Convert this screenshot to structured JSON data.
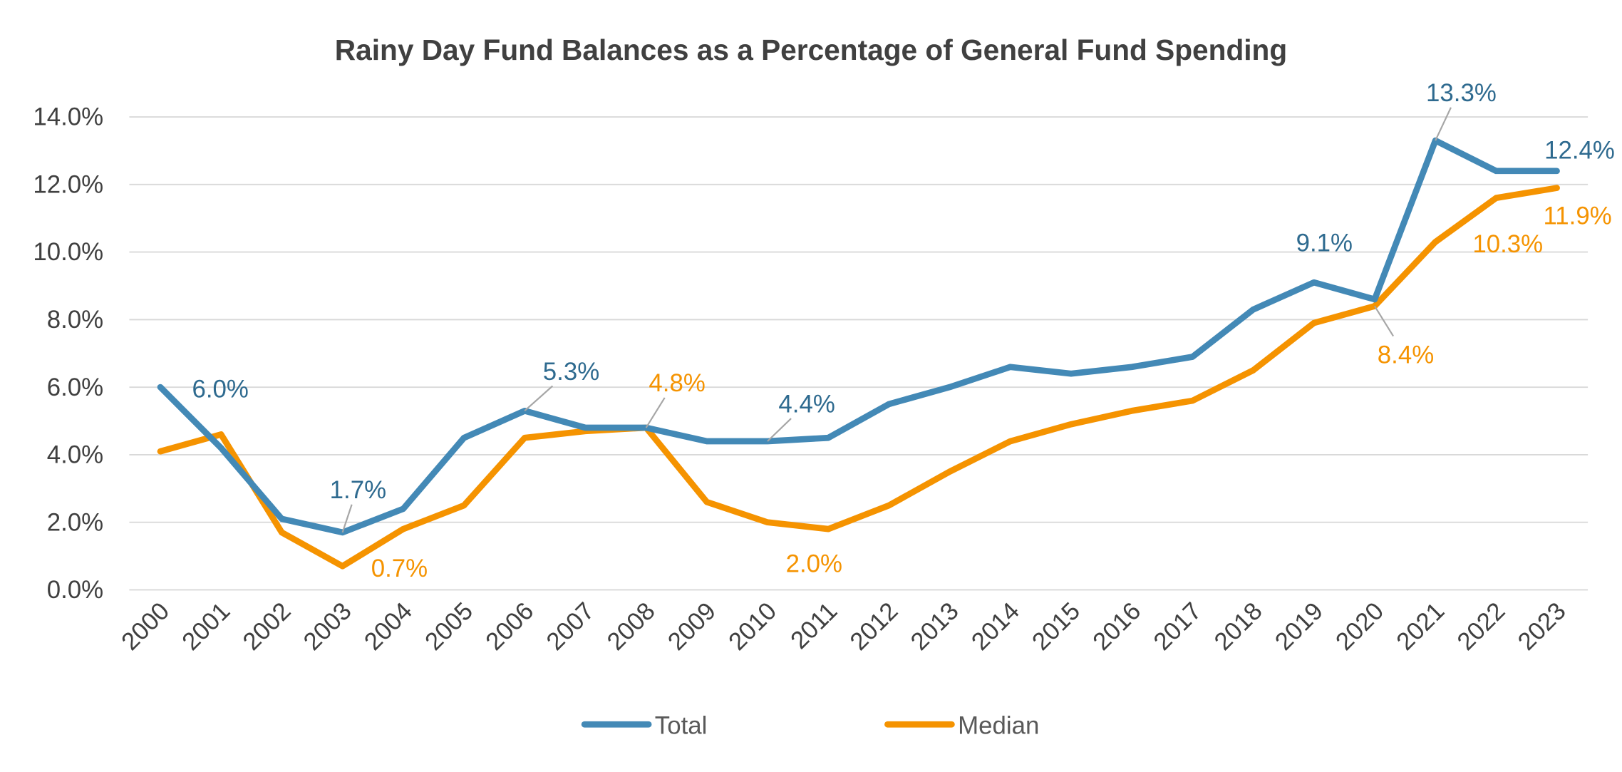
{
  "chart_data": {
    "type": "line",
    "title": "Rainy Day Fund Balances as a Percentage of General Fund Spending",
    "xlabel": "",
    "ylabel": "",
    "ylim": [
      0,
      14
    ],
    "y_ticks": [
      "0.0%",
      "2.0%",
      "4.0%",
      "6.0%",
      "8.0%",
      "10.0%",
      "12.0%",
      "14.0%"
    ],
    "grid": true,
    "legend_position": "bottom",
    "categories": [
      "2000",
      "2001",
      "2002",
      "2003",
      "2004",
      "2005",
      "2006",
      "2007",
      "2008",
      "2009",
      "2010",
      "2011",
      "2012",
      "2013",
      "2014",
      "2015",
      "2016",
      "2017",
      "2018",
      "2019",
      "2020",
      "2021",
      "2022",
      "2023"
    ],
    "series": [
      {
        "name": "Total",
        "color": "#4389B6",
        "values": [
          6.0,
          4.2,
          2.1,
          1.7,
          2.4,
          4.5,
          5.3,
          4.8,
          4.8,
          4.4,
          4.4,
          4.5,
          5.5,
          6.0,
          6.6,
          6.4,
          6.6,
          6.9,
          8.3,
          9.1,
          8.6,
          13.3,
          12.4,
          12.4
        ]
      },
      {
        "name": "Median",
        "color": "#F59300",
        "values": [
          4.1,
          4.6,
          1.7,
          0.7,
          1.8,
          2.5,
          4.5,
          4.7,
          4.8,
          2.6,
          2.0,
          1.8,
          2.5,
          3.5,
          4.4,
          4.9,
          5.3,
          5.6,
          6.5,
          7.9,
          8.4,
          10.3,
          11.6,
          11.9
        ]
      }
    ],
    "data_labels": [
      {
        "series": "Total",
        "year": "2000",
        "text": "6.0%"
      },
      {
        "series": "Total",
        "year": "2003",
        "text": "1.7%"
      },
      {
        "series": "Total",
        "year": "2006",
        "text": "5.3%"
      },
      {
        "series": "Total",
        "year": "2010",
        "text": "4.4%"
      },
      {
        "series": "Total",
        "year": "2019",
        "text": "9.1%"
      },
      {
        "series": "Total",
        "year": "2021",
        "text": "13.3%"
      },
      {
        "series": "Total",
        "year": "2023",
        "text": "12.4%"
      },
      {
        "series": "Median",
        "year": "2003",
        "text": "0.7%"
      },
      {
        "series": "Median",
        "year": "2008",
        "text": "4.8%"
      },
      {
        "series": "Median",
        "year": "2010",
        "text": "2.0%"
      },
      {
        "series": "Median",
        "year": "2020",
        "text": "8.4%"
      },
      {
        "series": "Median",
        "year": "2021",
        "text": "10.3%"
      },
      {
        "series": "Median",
        "year": "2023",
        "text": "11.9%"
      }
    ]
  }
}
